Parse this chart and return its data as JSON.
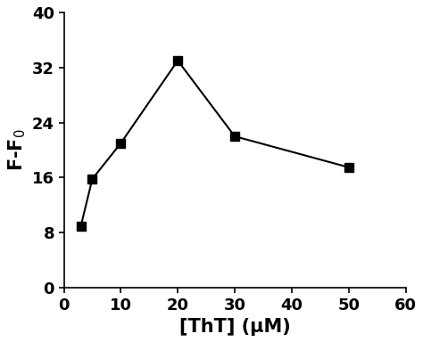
{
  "x": [
    3,
    5,
    10,
    20,
    30,
    50
  ],
  "y": [
    9.0,
    15.8,
    21.0,
    33.0,
    22.0,
    17.5
  ],
  "xlabel": "[ThT] (μM)",
  "ylabel": "F-F$_0$",
  "xlim": [
    0,
    60
  ],
  "ylim": [
    0,
    40
  ],
  "xticks": [
    0,
    10,
    20,
    30,
    40,
    50,
    60
  ],
  "yticks": [
    0,
    8,
    16,
    24,
    32,
    40
  ],
  "marker": "s",
  "marker_size": 7,
  "line_color": "#000000",
  "marker_color": "#000000",
  "line_width": 1.5,
  "linestyle": "-",
  "background_color": "#ffffff",
  "tick_label_fontsize": 13,
  "axis_label_fontsize": 15
}
